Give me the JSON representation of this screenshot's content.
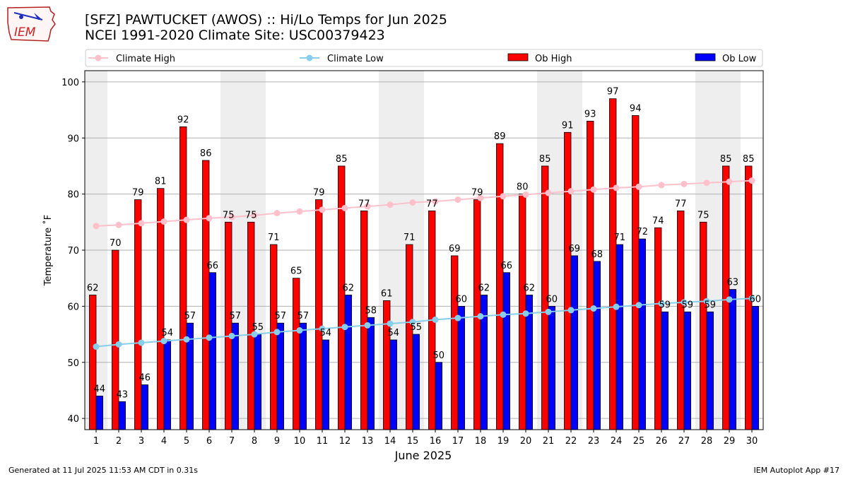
{
  "header": {
    "title_line1": "[SFZ] PAWTUCKET (AWOS) :: Hi/Lo Temps for Jun 2025",
    "title_line2": "NCEI 1991-2020 Climate Site: USC00379423",
    "logo_text": "IEM"
  },
  "footer": {
    "generated": "Generated at 11 Jul 2025 11:53 AM CDT in 0.31s",
    "app": "IEM Autoplot App #17"
  },
  "colors": {
    "ob_high": "#ff0000",
    "ob_low": "#0000ff",
    "climate_high": "#ffc0cb",
    "climate_low": "#87ceeb",
    "weekend_band": "#eeeeee"
  },
  "chart_data": {
    "type": "bar",
    "xlabel": "June 2025",
    "ylabel": "Temperature ˚F",
    "ylim": [
      38,
      102
    ],
    "yticks": [
      40,
      50,
      60,
      70,
      80,
      90,
      100
    ],
    "grid": true,
    "legend_position": "top",
    "categories": [
      "1",
      "2",
      "3",
      "4",
      "5",
      "6",
      "7",
      "8",
      "9",
      "10",
      "11",
      "12",
      "13",
      "14",
      "15",
      "16",
      "17",
      "18",
      "19",
      "20",
      "21",
      "22",
      "23",
      "24",
      "25",
      "26",
      "27",
      "28",
      "29",
      "30"
    ],
    "shaded_days": [
      1,
      7,
      8,
      14,
      15,
      21,
      22,
      28,
      29
    ],
    "series": [
      {
        "name": "Ob High",
        "kind": "bar",
        "values": [
          62,
          70,
          79,
          81,
          92,
          86,
          75,
          75,
          71,
          65,
          79,
          85,
          77,
          61,
          71,
          77,
          69,
          79,
          89,
          80,
          85,
          91,
          93,
          97,
          94,
          74,
          77,
          75,
          85,
          85
        ]
      },
      {
        "name": "Ob Low",
        "kind": "bar",
        "values": [
          44,
          43,
          46,
          54,
          57,
          66,
          57,
          55,
          57,
          57,
          54,
          62,
          58,
          54,
          55,
          50,
          60,
          62,
          66,
          62,
          60,
          69,
          68,
          71,
          72,
          59,
          59,
          59,
          63,
          60
        ]
      },
      {
        "name": "Climate High",
        "kind": "line",
        "values": [
          74.3,
          74.5,
          74.8,
          75.1,
          75.4,
          75.7,
          75.9,
          76.2,
          76.6,
          76.9,
          77.2,
          77.5,
          77.8,
          78.1,
          78.5,
          78.7,
          79.0,
          79.3,
          79.6,
          79.9,
          80.2,
          80.5,
          80.8,
          81.1,
          81.3,
          81.6,
          81.8,
          82.0,
          82.2,
          82.4
        ]
      },
      {
        "name": "Climate Low",
        "kind": "line",
        "values": [
          52.8,
          53.2,
          53.5,
          53.8,
          54.1,
          54.4,
          54.7,
          55.0,
          55.4,
          55.7,
          56.0,
          56.3,
          56.6,
          56.9,
          57.2,
          57.6,
          57.9,
          58.2,
          58.5,
          58.7,
          59.0,
          59.3,
          59.6,
          59.9,
          60.2,
          60.5,
          60.7,
          60.9,
          61.2,
          61.4
        ]
      }
    ]
  }
}
